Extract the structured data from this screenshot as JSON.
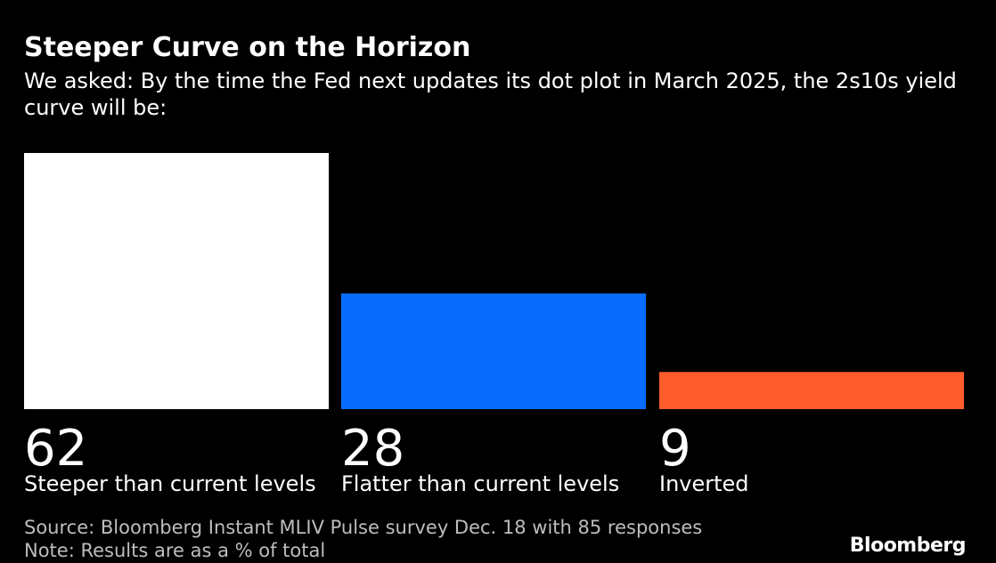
{
  "header": {
    "title": "Steeper Curve on the Horizon",
    "subtitle": "We asked: By the time the Fed next updates its dot plot in March 2025, the 2s10s yield curve will be:"
  },
  "footer": {
    "source": "Source: Bloomberg Instant MLIV Pulse survey Dec. 18 with 85 responses",
    "note": "Note: Results are as a % of total",
    "brand": "Bloomberg"
  },
  "colors": {
    "background": "#000000",
    "text": "#ffffff",
    "muted_text": "#bdbdbd"
  },
  "chart_data": {
    "type": "bar",
    "categories": [
      "Steeper than current levels",
      "Flatter than current levels",
      "Inverted"
    ],
    "values": [
      62,
      28,
      9
    ],
    "colors": [
      "#ffffff",
      "#0a6cff",
      "#ff5d2b"
    ],
    "title": "Steeper Curve on the Horizon",
    "xlabel": "",
    "ylabel": "",
    "ylim": [
      0,
      62
    ],
    "grid": false,
    "legend": "none"
  }
}
